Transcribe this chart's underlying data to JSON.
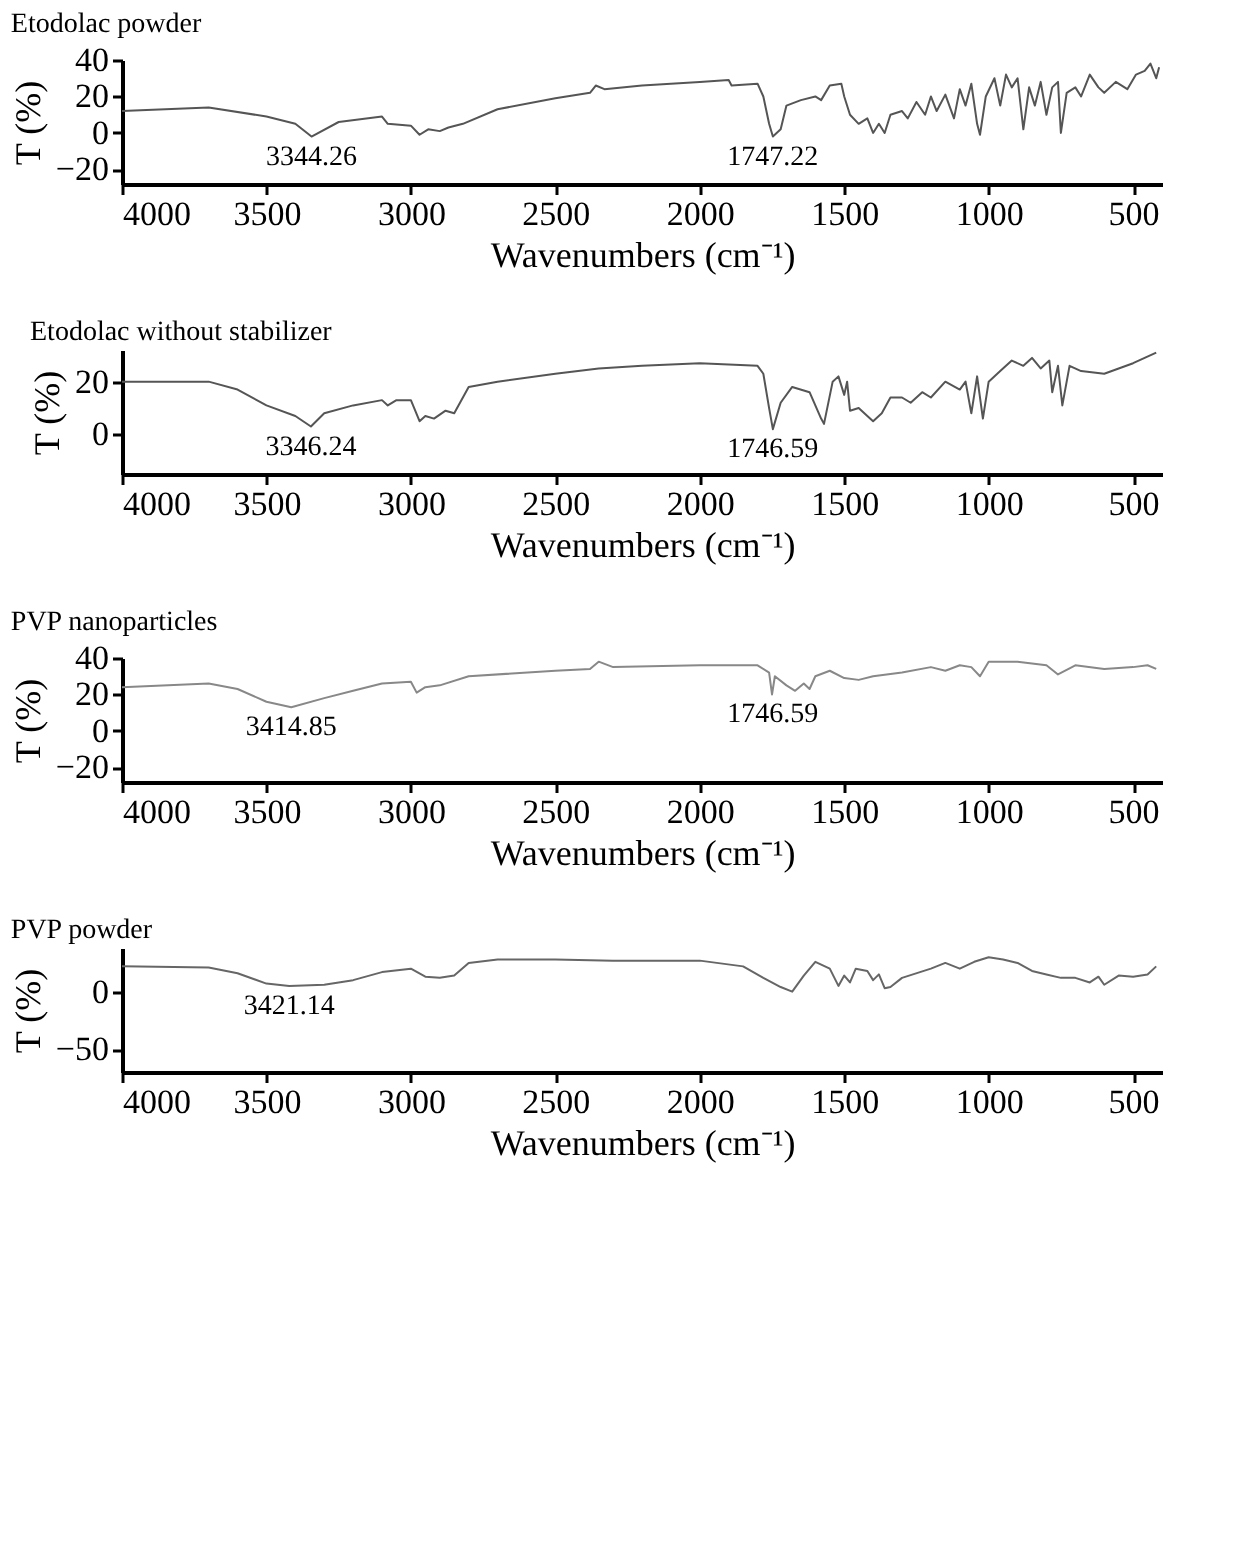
{
  "chart_data": [
    {
      "type": "line",
      "title": "Etodolac powder",
      "xlabel": "Wavenumbers (cm⁻¹)",
      "ylabel": "T (%)",
      "xlim": [
        4000,
        400
      ],
      "xticks": [
        4000,
        3500,
        3000,
        2500,
        2000,
        1500,
        1000,
        500
      ],
      "ylim": [
        -28,
        40
      ],
      "yticks": [
        -20,
        0,
        20,
        40
      ],
      "series": [
        {
          "color": "#555555",
          "x": [
            4000,
            3700,
            3500,
            3400,
            3344,
            3250,
            3100,
            3080,
            3000,
            2970,
            2940,
            2900,
            2870,
            2820,
            2700,
            2500,
            2380,
            2360,
            2330,
            2200,
            2000,
            1900,
            1890,
            1800,
            1780,
            1760,
            1747,
            1720,
            1700,
            1650,
            1600,
            1580,
            1550,
            1510,
            1500,
            1480,
            1450,
            1420,
            1400,
            1380,
            1360,
            1340,
            1300,
            1280,
            1250,
            1220,
            1200,
            1180,
            1150,
            1120,
            1100,
            1080,
            1060,
            1040,
            1030,
            1010,
            980,
            960,
            940,
            920,
            900,
            880,
            860,
            840,
            820,
            800,
            780,
            760,
            750,
            730,
            700,
            680,
            650,
            620,
            600,
            560,
            520,
            490,
            460,
            440,
            420,
            410
          ],
          "values": [
            12,
            14,
            9,
            5,
            -2,
            6,
            9,
            5,
            4,
            -1,
            2,
            1,
            3,
            5,
            13,
            19,
            22,
            26,
            24,
            26,
            28,
            29,
            26,
            27,
            20,
            5,
            -2,
            2,
            15,
            18,
            20,
            18,
            26,
            27,
            20,
            10,
            5,
            8,
            0,
            5,
            0,
            10,
            12,
            8,
            17,
            10,
            20,
            12,
            21,
            8,
            24,
            15,
            27,
            5,
            -1,
            20,
            30,
            15,
            32,
            25,
            30,
            2,
            25,
            15,
            28,
            10,
            25,
            28,
            0,
            22,
            25,
            20,
            32,
            25,
            22,
            28,
            24,
            32,
            34,
            38,
            30,
            36
          ]
        }
      ],
      "annotations": [
        {
          "text": "3344.26",
          "x": 3344,
          "y": -2
        },
        {
          "text": "1747.22",
          "x": 1747,
          "y": -2
        }
      ]
    },
    {
      "type": "line",
      "title": "Etodolac without stabilizer",
      "xlabel": "Wavenumbers (cm⁻¹)",
      "ylabel": "T (%)",
      "xlim": [
        4000,
        400
      ],
      "xticks": [
        4000,
        3500,
        3000,
        2500,
        2000,
        1500,
        1000,
        500
      ],
      "ylim": [
        -15,
        32
      ],
      "yticks": [
        0,
        20
      ],
      "series": [
        {
          "color": "#555555",
          "x": [
            4000,
            3700,
            3600,
            3500,
            3400,
            3346,
            3300,
            3200,
            3100,
            3080,
            3050,
            3000,
            2970,
            2950,
            2920,
            2880,
            2850,
            2800,
            2700,
            2500,
            2350,
            2200,
            2000,
            1800,
            1780,
            1760,
            1747,
            1720,
            1680,
            1620,
            1580,
            1570,
            1540,
            1520,
            1500,
            1490,
            1480,
            1450,
            1420,
            1400,
            1370,
            1340,
            1300,
            1270,
            1230,
            1200,
            1150,
            1100,
            1080,
            1060,
            1040,
            1020,
            1000,
            960,
            920,
            880,
            850,
            820,
            790,
            780,
            760,
            745,
            720,
            680,
            600,
            500,
            420
          ],
          "values": [
            20,
            20,
            17,
            11,
            7,
            3,
            8,
            11,
            13,
            11,
            13,
            13,
            5,
            7,
            6,
            9,
            8,
            18,
            20,
            23,
            25,
            26,
            27,
            26,
            23,
            10,
            2,
            12,
            18,
            16,
            6,
            4,
            20,
            22,
            15,
            20,
            9,
            10,
            7,
            5,
            8,
            14,
            14,
            12,
            16,
            14,
            20,
            17,
            20,
            8,
            22,
            6,
            20,
            24,
            28,
            26,
            29,
            25,
            28,
            16,
            26,
            11,
            26,
            24,
            23,
            27,
            31
          ]
        }
      ],
      "annotations": [
        {
          "text": "3346.24",
          "x": 3346,
          "y": 3
        },
        {
          "text": "1746.59",
          "x": 1747,
          "y": 2
        }
      ]
    },
    {
      "type": "line",
      "title": "PVP nanoparticles",
      "xlabel": "Wavenumbers (cm⁻¹)",
      "ylabel": "T (%)",
      "xlim": [
        4000,
        400
      ],
      "xticks": [
        4000,
        3500,
        3000,
        2500,
        2000,
        1500,
        1000,
        500
      ],
      "ylim": [
        -28,
        40
      ],
      "yticks": [
        -20,
        0,
        20,
        40
      ],
      "series": [
        {
          "color": "#888888",
          "x": [
            4000,
            3700,
            3600,
            3500,
            3414,
            3300,
            3200,
            3100,
            3000,
            2980,
            2950,
            2900,
            2800,
            2500,
            2380,
            2350,
            2300,
            2000,
            1800,
            1760,
            1750,
            1740,
            1700,
            1670,
            1640,
            1620,
            1600,
            1550,
            1500,
            1450,
            1400,
            1300,
            1200,
            1150,
            1100,
            1060,
            1030,
            1000,
            900,
            800,
            760,
            700,
            600,
            500,
            450,
            420
          ],
          "values": [
            24,
            26,
            23,
            16,
            13,
            18,
            22,
            26,
            27,
            21,
            24,
            25,
            30,
            33,
            34,
            38,
            35,
            36,
            36,
            32,
            20,
            30,
            25,
            22,
            26,
            23,
            30,
            33,
            29,
            28,
            30,
            32,
            35,
            33,
            36,
            35,
            30,
            38,
            38,
            36,
            31,
            36,
            34,
            35,
            36,
            34
          ]
        }
      ],
      "annotations": [
        {
          "text": "3414.85",
          "x": 3414,
          "y": 13
        },
        {
          "text": "1746.59",
          "x": 1747,
          "y": 20
        }
      ]
    },
    {
      "type": "line",
      "title": "PVP powder",
      "xlabel": "Wavenumbers (cm⁻¹)",
      "ylabel": "T (%)",
      "xlim": [
        4000,
        400
      ],
      "xticks": [
        4000,
        3500,
        3000,
        2500,
        2000,
        1500,
        1000,
        500
      ],
      "ylim": [
        -70,
        38
      ],
      "yticks": [
        -50,
        0
      ],
      "series": [
        {
          "color": "#666666",
          "x": [
            4000,
            3700,
            3600,
            3500,
            3421,
            3300,
            3200,
            3100,
            3000,
            2950,
            2900,
            2850,
            2800,
            2700,
            2500,
            2300,
            2000,
            1850,
            1780,
            1720,
            1680,
            1640,
            1600,
            1550,
            1520,
            1500,
            1480,
            1460,
            1420,
            1400,
            1380,
            1360,
            1340,
            1300,
            1200,
            1150,
            1100,
            1050,
            1000,
            950,
            900,
            850,
            800,
            750,
            700,
            650,
            620,
            600,
            550,
            500,
            450,
            420
          ],
          "values": [
            22,
            21,
            16,
            7,
            5,
            6,
            10,
            17,
            20,
            13,
            12,
            14,
            25,
            28,
            28,
            27,
            27,
            22,
            12,
            4,
            0,
            14,
            26,
            20,
            5,
            14,
            8,
            20,
            18,
            10,
            15,
            3,
            4,
            12,
            20,
            25,
            20,
            26,
            30,
            28,
            25,
            18,
            15,
            12,
            12,
            8,
            13,
            6,
            14,
            13,
            15,
            22
          ]
        }
      ],
      "annotations": [
        {
          "text": "3421.14",
          "x": 3421,
          "y": 5
        }
      ]
    }
  ]
}
